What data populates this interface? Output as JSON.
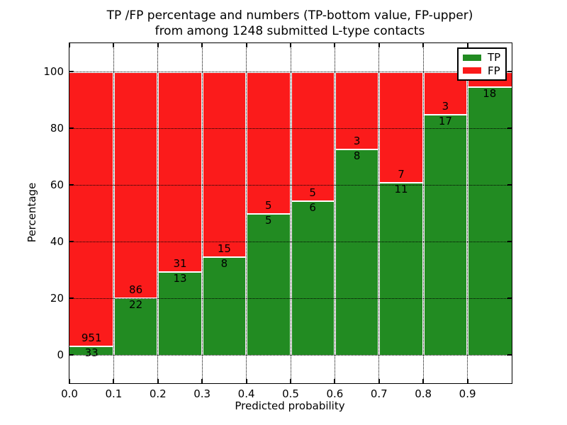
{
  "title": {
    "line1": "TP /FP percentage and numbers (TP-bottom value, FP-upper)",
    "line2": "from among 1248 submitted L-type contacts"
  },
  "axes": {
    "x_label": "Predicted probability",
    "y_label": "Percentage",
    "x_tick_labels": [
      "0.0",
      "0.1",
      "0.2",
      "0.3",
      "0.4",
      "0.5",
      "0.6",
      "0.7",
      "0.8",
      "0.9"
    ],
    "y_tick_labels": [
      "0",
      "20",
      "40",
      "60",
      "80",
      "100"
    ],
    "y_tick_values": [
      0,
      20,
      40,
      60,
      80,
      100
    ]
  },
  "legend": {
    "items": [
      {
        "label": "TP",
        "color": "#228b22"
      },
      {
        "label": "FP",
        "color": "#fb1b1b"
      }
    ]
  },
  "chart_data": {
    "type": "bar",
    "stacked": true,
    "normalized_to_percent": true,
    "title": "TP /FP percentage and numbers (TP-bottom value, FP-upper) from among 1248 submitted L-type contacts",
    "xlabel": "Predicted probability",
    "ylabel": "Percentage",
    "xlim": [
      0.0,
      1.0
    ],
    "ylim": [
      -10,
      110
    ],
    "grid": true,
    "legend_position": "upper right",
    "total_submitted_contacts": 1248,
    "bin_start": [
      0.0,
      0.1,
      0.2,
      0.3,
      0.4,
      0.5,
      0.6,
      0.7,
      0.8,
      0.9
    ],
    "bin_width": 0.1,
    "series": [
      {
        "name": "TP",
        "color": "#228b22",
        "counts": [
          33,
          22,
          13,
          8,
          5,
          6,
          8,
          11,
          17,
          18
        ],
        "percent": [
          3.35,
          20.37,
          29.55,
          34.78,
          50.0,
          54.55,
          72.73,
          61.11,
          85.0,
          94.74
        ]
      },
      {
        "name": "FP",
        "color": "#fb1b1b",
        "counts": [
          951,
          86,
          31,
          15,
          5,
          5,
          3,
          7,
          3,
          null
        ],
        "percent": [
          96.65,
          79.63,
          70.45,
          65.22,
          50.0,
          45.45,
          27.27,
          38.89,
          15.0,
          5.26
        ]
      }
    ],
    "bar_labels": {
      "tp": [
        "33",
        "22",
        "13",
        "8",
        "5",
        "6",
        "8",
        "11",
        "17",
        "18"
      ],
      "fp": [
        "951",
        "86",
        "31",
        "15",
        "5",
        "5",
        "3",
        "7",
        "3",
        ""
      ]
    }
  }
}
